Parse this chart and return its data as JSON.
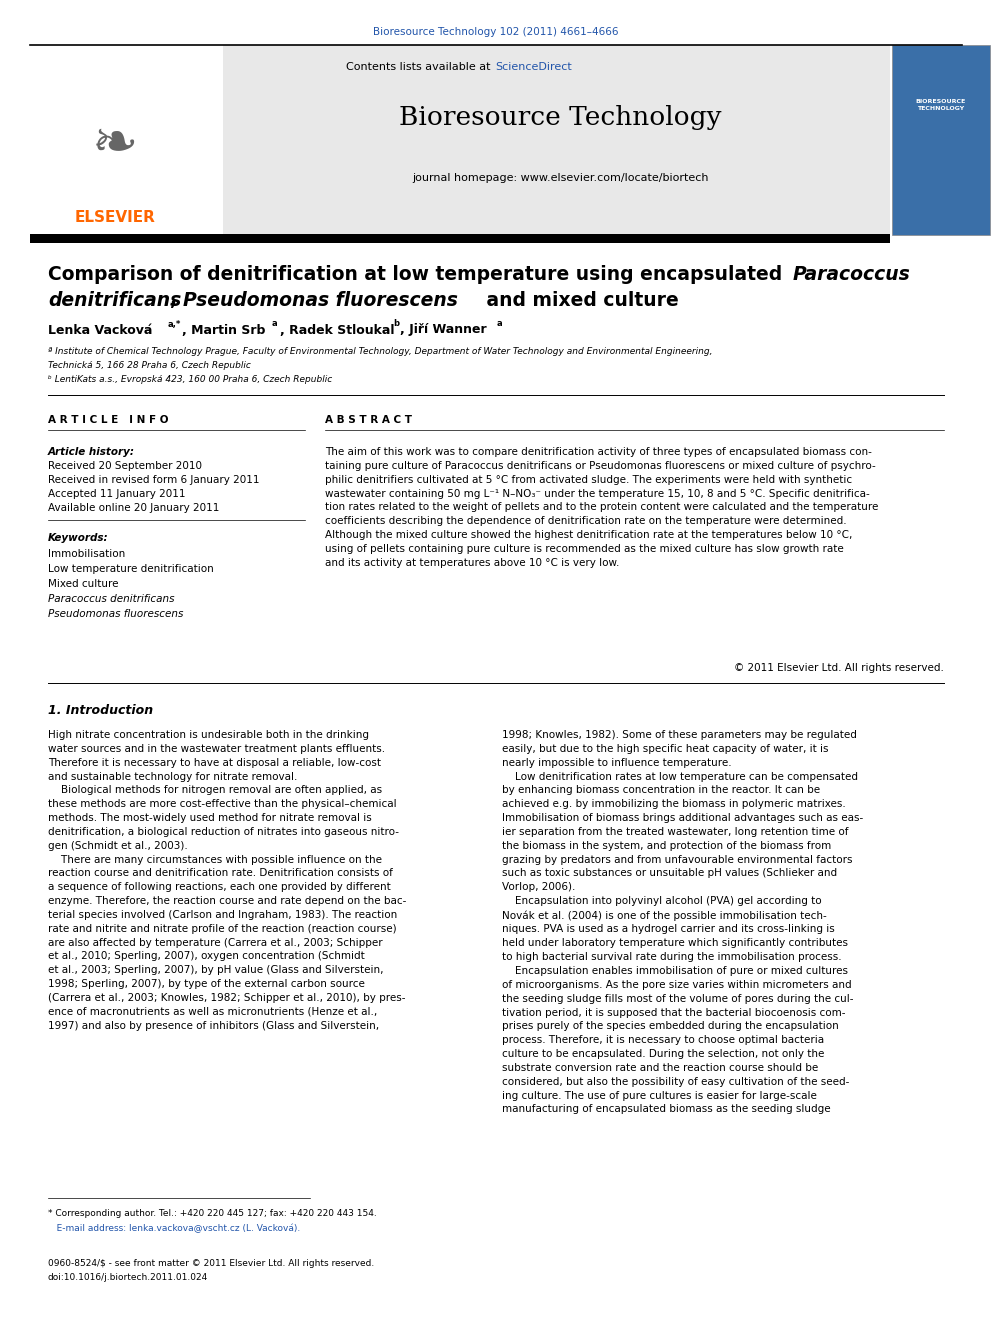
{
  "page_width": 9.92,
  "page_height": 13.23,
  "bg_color": "#ffffff",
  "journal_ref_color": "#2255aa",
  "journal_ref": "Bioresource Technology 102 (2011) 4661–4666",
  "sciencedirect_color": "#2255aa",
  "contents_text": "Contents lists available at",
  "sciencedirect_text": "ScienceDirect",
  "journal_name": "Bioresource Technology",
  "journal_homepage": "journal homepage: www.elsevier.com/locate/biortech",
  "header_bg": "#e8e8e8",
  "elsevier_color": "#ff6600",
  "elsevier_text": "ELSEVIER",
  "section_article_info": "A R T I C L E   I N F O",
  "article_history_label": "Article history:",
  "received1": "Received 20 September 2010",
  "received2": "Received in revised form 6 January 2011",
  "accepted": "Accepted 11 January 2011",
  "available": "Available online 20 January 2011",
  "keywords_label": "Keywords:",
  "keywords": [
    "Immobilisation",
    "Low temperature denitrification",
    "Mixed culture",
    "Paracoccus denitrificans",
    "Pseudomonas fluorescens"
  ],
  "keywords_italic": [
    false,
    false,
    false,
    true,
    true
  ],
  "section_abstract": "A B S T R A C T",
  "copyright": "© 2011 Elsevier Ltd. All rights reserved.",
  "section1_title": "1. Introduction",
  "footnote_star": "* Corresponding author. Tel.: +420 220 445 127; fax: +420 220 443 154.",
  "footnote_email": "   E-mail address: lenka.vackova@vscht.cz (L. Vacková).",
  "footer1": "0960-8524/$ - see front matter © 2011 Elsevier Ltd. All rights reserved.",
  "footer2": "doi:10.1016/j.biortech.2011.01.024",
  "link_color": "#2255aa"
}
